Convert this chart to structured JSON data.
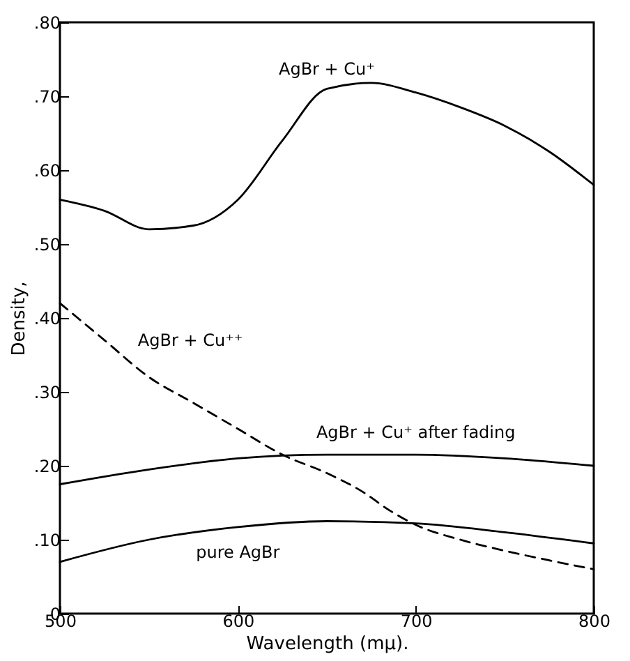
{
  "chart_data": {
    "type": "line",
    "xlabel": "Wavelength (mμ).",
    "ylabel": "Density,",
    "xlim": [
      500,
      800
    ],
    "xticks": [
      500,
      600,
      700,
      800
    ],
    "ylim": [
      0,
      0.8
    ],
    "yticks": [
      {
        "value": 0,
        "label": "0"
      },
      {
        "value": 0.1,
        "label": ".10"
      },
      {
        "value": 0.2,
        "label": ".20"
      },
      {
        "value": 0.3,
        "label": ".30"
      },
      {
        "value": 0.4,
        "label": ".40"
      },
      {
        "value": 0.5,
        "label": ".50"
      },
      {
        "value": 0.6,
        "label": ".60"
      },
      {
        "value": 0.7,
        "label": ".70"
      },
      {
        "value": 0.8,
        "label": ".80"
      }
    ],
    "marker": "none",
    "series": [
      {
        "name": "AgBr + Cu⁺",
        "color": "#000000",
        "line_style": "solid",
        "x": [
          500,
          525,
          550,
          575,
          600,
          625,
          650,
          675,
          700,
          725,
          750,
          775,
          800
        ],
        "values": [
          0.56,
          0.545,
          0.52,
          0.525,
          0.56,
          0.64,
          0.71,
          0.718,
          0.705,
          0.685,
          0.66,
          0.625,
          0.58
        ]
      },
      {
        "name": "AgBr + Cu⁺⁺",
        "color": "#000000",
        "line_style": "dashed",
        "x": [
          500,
          510,
          525,
          550,
          575,
          600,
          625,
          650,
          670,
          685,
          700,
          725,
          750,
          775,
          800
        ],
        "values": [
          0.42,
          0.4,
          0.37,
          0.32,
          0.285,
          0.25,
          0.215,
          0.19,
          0.165,
          0.14,
          0.12,
          0.1,
          0.085,
          0.072,
          0.06
        ]
      },
      {
        "name": "AgBr + Cu⁺ after fading",
        "color": "#000000",
        "line_style": "solid",
        "x": [
          500,
          550,
          600,
          650,
          700,
          750,
          800
        ],
        "values": [
          0.175,
          0.195,
          0.21,
          0.215,
          0.215,
          0.21,
          0.2
        ]
      },
      {
        "name": "pure AgBr",
        "color": "#000000",
        "line_style": "solid",
        "x": [
          500,
          550,
          600,
          650,
          700,
          750,
          800
        ],
        "values": [
          0.07,
          0.1,
          0.117,
          0.125,
          0.122,
          0.11,
          0.095
        ]
      }
    ]
  }
}
